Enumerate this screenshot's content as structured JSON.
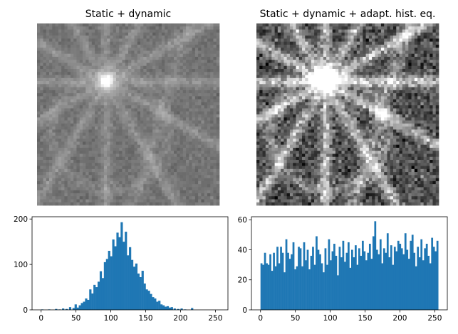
{
  "chart_data": [
    {
      "type": "heatmap",
      "title": "Static + dynamic",
      "colormap": "gray",
      "axes": "off",
      "grid_size": [
        60,
        60
      ],
      "contrast": "low"
    },
    {
      "type": "heatmap",
      "title": "Static + dynamic + adapt. hist. eq.",
      "colormap": "gray",
      "axes": "off",
      "grid_size": [
        60,
        60
      ],
      "contrast": "high"
    },
    {
      "type": "bar",
      "title": "",
      "xlabel": "",
      "ylabel": "",
      "xlim": [
        -13,
        268
      ],
      "ylim": [
        0,
        205
      ],
      "xticks": [
        0,
        50,
        100,
        150,
        200,
        250
      ],
      "yticks": [
        0,
        100,
        200
      ],
      "color": "#1f77b4",
      "bins": [
        {
          "x": 0,
          "width": 3,
          "value": 1
        },
        {
          "x": 10,
          "width": 3,
          "value": 1
        },
        {
          "x": 20,
          "width": 3,
          "value": 2
        },
        {
          "x": 25,
          "width": 3,
          "value": 1
        },
        {
          "x": 30,
          "width": 3,
          "value": 3
        },
        {
          "x": 35,
          "width": 3,
          "value": 2
        },
        {
          "x": 40,
          "width": 3,
          "value": 6
        },
        {
          "x": 45,
          "width": 3,
          "value": 4
        },
        {
          "x": 48,
          "width": 3,
          "value": 12
        },
        {
          "x": 51,
          "width": 3,
          "value": 5
        },
        {
          "x": 54,
          "width": 3,
          "value": 10
        },
        {
          "x": 57,
          "width": 3,
          "value": 15
        },
        {
          "x": 60,
          "width": 3,
          "value": 18
        },
        {
          "x": 63,
          "width": 3,
          "value": 25
        },
        {
          "x": 66,
          "width": 3,
          "value": 22
        },
        {
          "x": 69,
          "width": 3,
          "value": 45
        },
        {
          "x": 72,
          "width": 3,
          "value": 36
        },
        {
          "x": 75,
          "width": 3,
          "value": 55
        },
        {
          "x": 78,
          "width": 3,
          "value": 50
        },
        {
          "x": 81,
          "width": 3,
          "value": 62
        },
        {
          "x": 84,
          "width": 3,
          "value": 85
        },
        {
          "x": 87,
          "width": 3,
          "value": 70
        },
        {
          "x": 90,
          "width": 3,
          "value": 105
        },
        {
          "x": 93,
          "width": 3,
          "value": 112
        },
        {
          "x": 96,
          "width": 3,
          "value": 130
        },
        {
          "x": 99,
          "width": 3,
          "value": 118
        },
        {
          "x": 102,
          "width": 3,
          "value": 155
        },
        {
          "x": 105,
          "width": 3,
          "value": 140
        },
        {
          "x": 108,
          "width": 3,
          "value": 170
        },
        {
          "x": 111,
          "width": 3,
          "value": 160
        },
        {
          "x": 114,
          "width": 3,
          "value": 193
        },
        {
          "x": 117,
          "width": 3,
          "value": 150
        },
        {
          "x": 120,
          "width": 3,
          "value": 172
        },
        {
          "x": 123,
          "width": 3,
          "value": 120
        },
        {
          "x": 126,
          "width": 3,
          "value": 138
        },
        {
          "x": 129,
          "width": 3,
          "value": 110
        },
        {
          "x": 132,
          "width": 3,
          "value": 95
        },
        {
          "x": 135,
          "width": 3,
          "value": 102
        },
        {
          "x": 138,
          "width": 3,
          "value": 80
        },
        {
          "x": 141,
          "width": 3,
          "value": 72
        },
        {
          "x": 144,
          "width": 3,
          "value": 86
        },
        {
          "x": 147,
          "width": 3,
          "value": 58
        },
        {
          "x": 150,
          "width": 3,
          "value": 45
        },
        {
          "x": 153,
          "width": 3,
          "value": 42
        },
        {
          "x": 156,
          "width": 3,
          "value": 35
        },
        {
          "x": 159,
          "width": 3,
          "value": 28
        },
        {
          "x": 162,
          "width": 3,
          "value": 25
        },
        {
          "x": 165,
          "width": 3,
          "value": 18
        },
        {
          "x": 168,
          "width": 3,
          "value": 20
        },
        {
          "x": 171,
          "width": 3,
          "value": 12
        },
        {
          "x": 174,
          "width": 3,
          "value": 10
        },
        {
          "x": 177,
          "width": 3,
          "value": 7
        },
        {
          "x": 180,
          "width": 3,
          "value": 8
        },
        {
          "x": 183,
          "width": 3,
          "value": 5
        },
        {
          "x": 186,
          "width": 3,
          "value": 6
        },
        {
          "x": 190,
          "width": 3,
          "value": 3
        },
        {
          "x": 195,
          "width": 3,
          "value": 2
        },
        {
          "x": 200,
          "width": 3,
          "value": 3
        },
        {
          "x": 205,
          "width": 3,
          "value": 1
        },
        {
          "x": 215,
          "width": 3,
          "value": 4
        }
      ]
    },
    {
      "type": "bar",
      "title": "",
      "xlabel": "",
      "ylabel": "",
      "xlim": [
        -13,
        268
      ],
      "ylim": [
        0,
        62
      ],
      "xticks": [
        0,
        50,
        100,
        150,
        200,
        250
      ],
      "yticks": [
        0,
        20,
        40,
        60
      ],
      "color": "#1f77b4",
      "bin_width": 2.55,
      "values": [
        31,
        30,
        38,
        31,
        30,
        37,
        26,
        38,
        29,
        42,
        31,
        42,
        38,
        25,
        47,
        38,
        34,
        37,
        45,
        27,
        29,
        42,
        41,
        29,
        45,
        33,
        40,
        27,
        36,
        42,
        30,
        49,
        40,
        37,
        31,
        25,
        41,
        30,
        47,
        33,
        39,
        44,
        36,
        23,
        42,
        35,
        46,
        32,
        38,
        45,
        28,
        40,
        35,
        43,
        30,
        41,
        36,
        46,
        39,
        33,
        38,
        44,
        34,
        49,
        59,
        40,
        37,
        47,
        31,
        41,
        38,
        51,
        35,
        43,
        30,
        42,
        39,
        46,
        44,
        41,
        37,
        51,
        40,
        34,
        46,
        50,
        38,
        29,
        42,
        35,
        47,
        33,
        41,
        44,
        36,
        31,
        48,
        42,
        39,
        46
      ]
    }
  ]
}
